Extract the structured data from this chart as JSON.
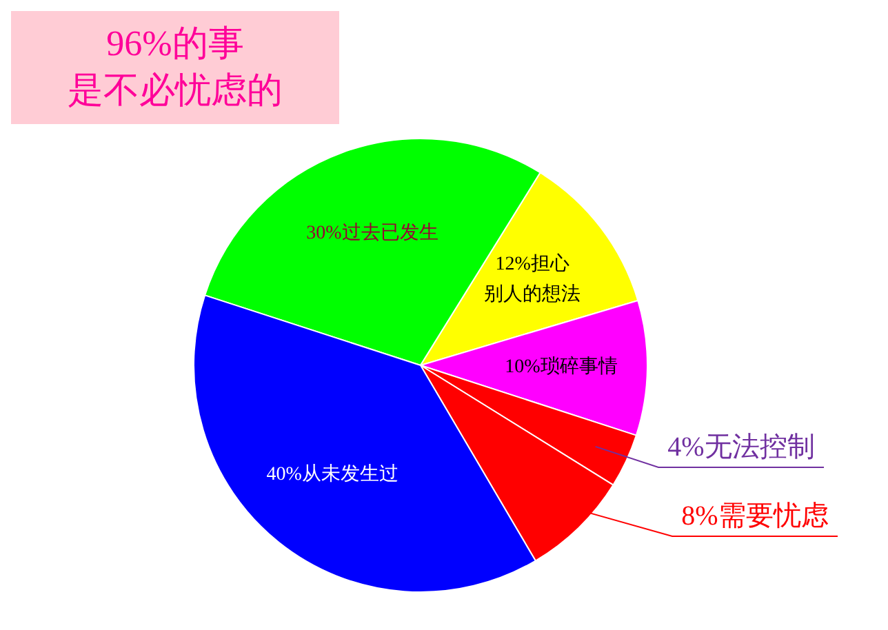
{
  "chart_data": {
    "type": "pie",
    "title": "96%的事",
    "subtitle": "是不必忧虑的",
    "categories": [
      "过去已发生",
      "担心别人的想法",
      "琐碎事情",
      "无法控制",
      "需要忧虑",
      "从未发生过"
    ],
    "values": [
      30,
      12,
      10,
      4,
      8,
      40
    ],
    "value_labels": [
      "30%",
      "12%",
      "10%",
      "4%",
      "8%",
      "40%"
    ],
    "colors": [
      "#00ff00",
      "#ffff00",
      "#ff00ff",
      "#ff0000",
      "#ff0000",
      "#0000ff"
    ],
    "legend": false
  }
}
